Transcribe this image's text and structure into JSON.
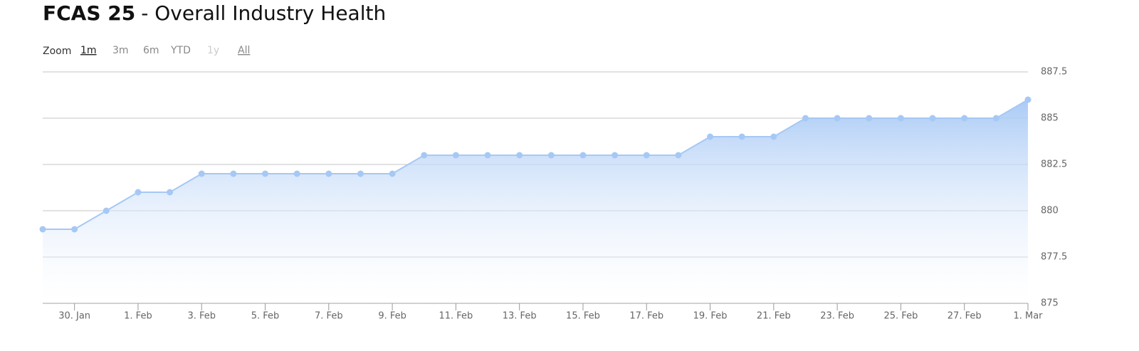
{
  "chart_data": {
    "type": "area",
    "title": "FCAS 25",
    "subtitle": "- Overall Industry Health",
    "zoom_label": "Zoom",
    "zoom_buttons": [
      "1m",
      "3m",
      "6m",
      "YTD",
      "1y",
      "All"
    ],
    "selected_zoom": 0,
    "disabled_zoom": [
      4
    ],
    "categories": [
      null,
      "30. Jan",
      null,
      "1. Feb",
      null,
      "3. Feb",
      null,
      "5. Feb",
      null,
      "7. Feb",
      null,
      "9. Feb",
      null,
      "11. Feb",
      null,
      "13. Feb",
      null,
      "15. Feb",
      null,
      "17. Feb",
      null,
      "19. Feb",
      null,
      "21. Feb",
      null,
      "23. Feb",
      null,
      "25. Feb",
      null,
      "27. Feb",
      null,
      "1. Mar"
    ],
    "values": [
      879,
      879,
      880,
      881,
      881,
      882,
      882,
      882,
      882,
      882,
      882,
      882,
      883,
      883,
      883,
      883,
      883,
      883,
      883,
      883,
      883,
      884,
      884,
      884,
      885,
      885,
      885,
      885,
      885,
      885,
      885,
      886
    ],
    "color": "#a6c8f5",
    "ylim": [
      875,
      887.5
    ],
    "yticks": [
      875,
      877.5,
      880,
      882.5,
      885,
      887.5
    ],
    "grid": true,
    "y_axis_side": "right"
  }
}
